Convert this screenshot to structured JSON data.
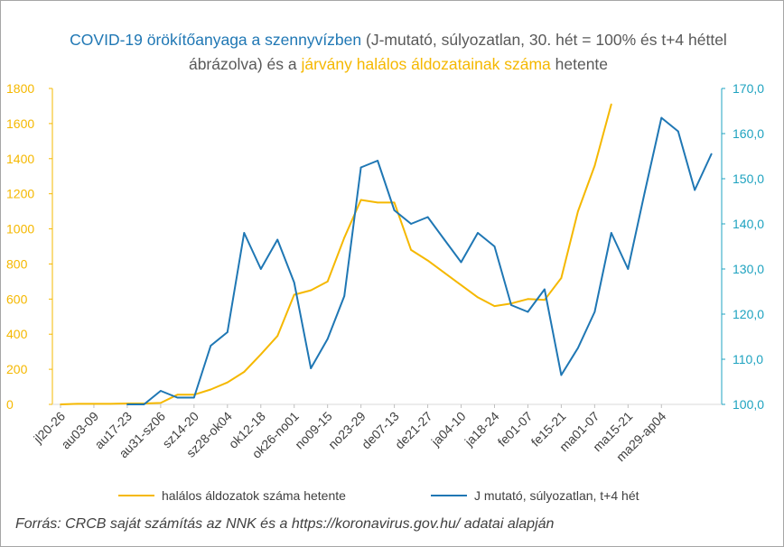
{
  "title": {
    "part1": "COVID-19 örökítőanyaga a szennyvízben",
    "part2": " (J-mutató, súlyozatlan, 30. hét = 100% és t+4 héttel ábrázolva) és a ",
    "part3": "járvány halálos áldozatainak száma",
    "part4": " hetente"
  },
  "source": "Forrás: CRCB saját számítás az NNK és a https://koronavirus.gov.hu/ adatai alapján",
  "colors": {
    "deaths": "#f5b800",
    "wastewater": "#1f77b4",
    "left_axis": "#f5b800",
    "right_axis": "#1fa3c0"
  },
  "chart_data": {
    "type": "line",
    "grid": false,
    "legend_position": "bottom",
    "x_tick_labels": [
      "jl20-26",
      "au03-09",
      "au17-23",
      "au31-sz06",
      "sz14-20",
      "sz28-ok04",
      "ok12-18",
      "ok26-no01",
      "no09-15",
      "no23-29",
      "de07-13",
      "de21-27",
      "ja04-10",
      "ja18-24",
      "fe01-07",
      "fe15-21",
      "ma01-07",
      "ma15-21",
      "ma29-ap04"
    ],
    "y_left": {
      "min": 0,
      "max": 1800,
      "ticks": [
        "0",
        "200",
        "400",
        "600",
        "800",
        "1000",
        "1200",
        "1400",
        "1600",
        "1800"
      ]
    },
    "y_right": {
      "min": 100,
      "max": 170,
      "ticks": [
        "100,0",
        "110,0",
        "120,0",
        "130,0",
        "140,0",
        "150,0",
        "160,0",
        "170,0"
      ]
    },
    "series": [
      {
        "name": "halálos áldozatok száma hetente",
        "axis": "left",
        "start_index": 0,
        "values": [
          0,
          3,
          3,
          3,
          5,
          5,
          8,
          55,
          55,
          85,
          125,
          185,
          285,
          390,
          625,
          650,
          700,
          950,
          1165,
          1150,
          1150,
          880,
          820,
          750,
          680,
          610,
          560,
          575,
          600,
          595,
          720,
          1100,
          1360,
          1710
        ]
      },
      {
        "name": "J mutató, súlyozatlan, t+4 hét",
        "axis": "right",
        "start_index": 4,
        "values": [
          100,
          100,
          103,
          101.5,
          101.5,
          113,
          116,
          138,
          130,
          136.5,
          127,
          108,
          114.5,
          124,
          152.5,
          154,
          143,
          140,
          141.5,
          136.5,
          131.5,
          138,
          135,
          122,
          120.5,
          125.5,
          106.5,
          112.5,
          120.5,
          138,
          130,
          147,
          163.5,
          160.5,
          147.5,
          155.5
        ]
      }
    ]
  }
}
